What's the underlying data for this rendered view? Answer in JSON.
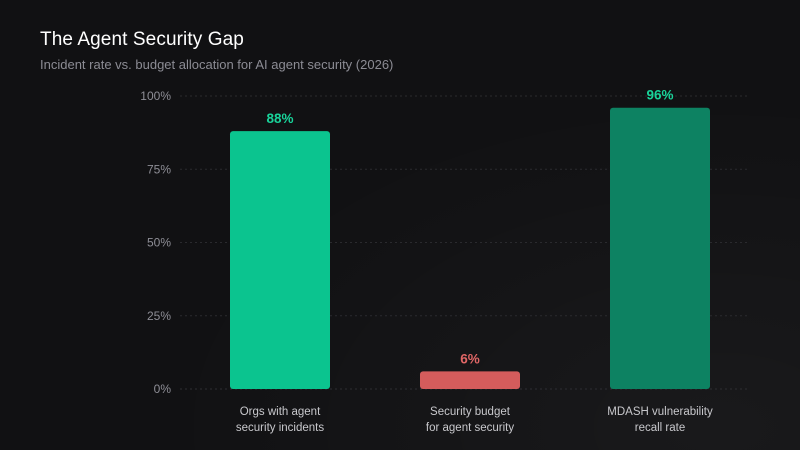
{
  "chart_data": {
    "type": "bar",
    "title": "The Agent Security Gap",
    "subtitle": "Incident rate vs. budget allocation for AI agent security (2026)",
    "categories": [
      [
        "Orgs with agent",
        "security incidents"
      ],
      [
        "Security budget",
        "for agent security"
      ],
      [
        "MDASH vulnerability",
        "recall rate"
      ]
    ],
    "values": [
      88,
      6,
      96
    ],
    "value_labels": [
      "88%",
      "6%",
      "96%"
    ],
    "bar_colors": [
      "#0bc48f",
      "#d45c5c",
      "#0d8262"
    ],
    "label_colors": [
      "#19d39a",
      "#e06666",
      "#19d39a"
    ],
    "yticks": [
      0,
      25,
      50,
      75,
      100
    ],
    "ytick_labels": [
      "0%",
      "25%",
      "50%",
      "75%",
      "100%"
    ],
    "ylim": [
      0,
      100
    ],
    "xlabel": "",
    "ylabel": "",
    "grid": true
  }
}
